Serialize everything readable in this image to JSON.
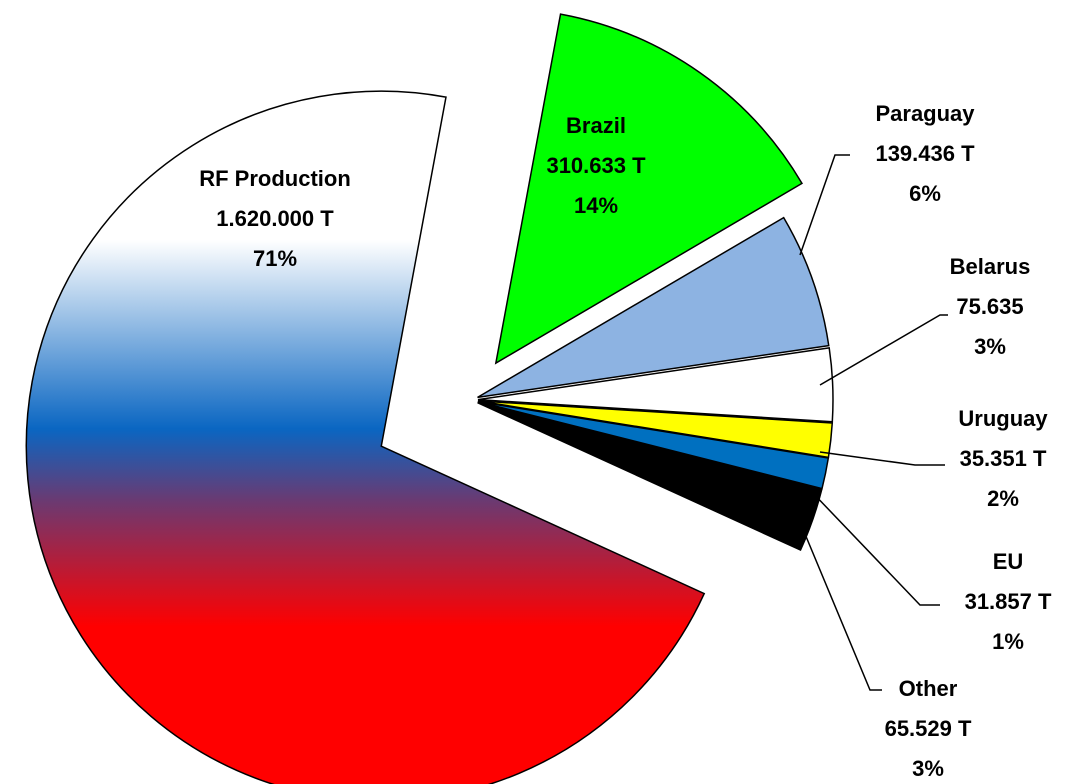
{
  "chart_data": {
    "type": "pie",
    "categories": [
      "RF Production",
      "Brazil",
      "Paraguay",
      "Belarus",
      "Uruguay",
      "EU",
      "Other"
    ],
    "values": [
      1620000,
      310633,
      139436,
      75635,
      35351,
      31857,
      65529
    ],
    "value_labels": [
      "1.620.000 T",
      "310.633 T",
      "139.436 T",
      "75.635",
      "35.351 T",
      "31.857 T",
      "65.529 T"
    ],
    "percent_labels": [
      "71%",
      "14%",
      "6%",
      "3%",
      "2%",
      "1%",
      "3%"
    ],
    "colors": [
      "#ffffff",
      "#00ff00",
      "#8db3e2",
      "#ffffff",
      "#ffff00",
      "#0070c0",
      "#000000"
    ]
  }
}
